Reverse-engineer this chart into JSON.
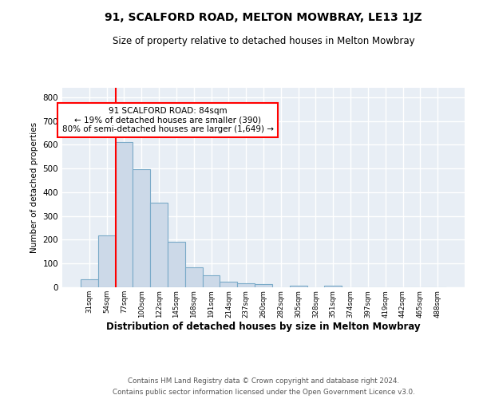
{
  "title1": "91, SCALFORD ROAD, MELTON MOWBRAY, LE13 1JZ",
  "title2": "Size of property relative to detached houses in Melton Mowbray",
  "xlabel": "Distribution of detached houses by size in Melton Mowbray",
  "ylabel": "Number of detached properties",
  "bar_labels": [
    "31sqm",
    "54sqm",
    "77sqm",
    "100sqm",
    "122sqm",
    "145sqm",
    "168sqm",
    "191sqm",
    "214sqm",
    "237sqm",
    "260sqm",
    "282sqm",
    "305sqm",
    "328sqm",
    "351sqm",
    "374sqm",
    "397sqm",
    "419sqm",
    "442sqm",
    "465sqm",
    "488sqm"
  ],
  "bar_values": [
    32,
    220,
    610,
    498,
    355,
    190,
    85,
    50,
    24,
    18,
    15,
    0,
    8,
    0,
    8,
    0,
    0,
    0,
    0,
    0,
    0
  ],
  "bar_color": "#ccd9e8",
  "bar_edge_color": "#7aaac8",
  "annotation_text": "91 SCALFORD ROAD: 84sqm\n← 19% of detached houses are smaller (390)\n80% of semi-detached houses are larger (1,649) →",
  "red_line_bar_index": 2,
  "ylim": [
    0,
    840
  ],
  "yticks": [
    0,
    100,
    200,
    300,
    400,
    500,
    600,
    700,
    800
  ],
  "footer1": "Contains HM Land Registry data © Crown copyright and database right 2024.",
  "footer2": "Contains public sector information licensed under the Open Government Licence v3.0.",
  "bg_color": "#e8eef5",
  "grid_color": "#ffffff"
}
